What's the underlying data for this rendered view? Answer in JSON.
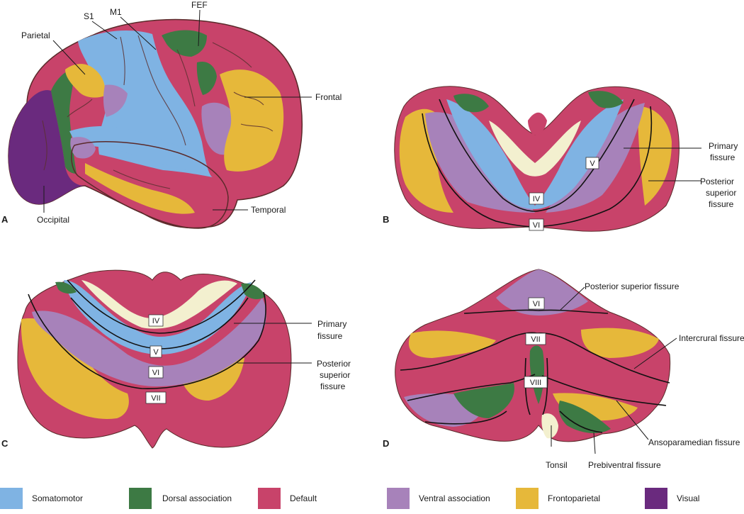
{
  "panels": {
    "a": {
      "letter": "A",
      "labels": {
        "s1": "S1",
        "m1": "M1",
        "fef": "FEF",
        "parietal": "Parietal",
        "frontal": "Frontal",
        "occipital": "Occipital",
        "temporal": "Temporal"
      }
    },
    "b": {
      "letter": "B",
      "lobules": {
        "v": "V",
        "iv": "IV",
        "vi": "VI"
      },
      "labels": {
        "primary_1": "Primary",
        "primary_2": "fissure",
        "pos_1": "Posterior",
        "pos_2": "superior",
        "pos_3": "fissure"
      }
    },
    "c": {
      "letter": "C",
      "lobules": {
        "iv": "IV",
        "v": "V",
        "vi": "VI",
        "vii": "VII"
      },
      "labels": {
        "primary_1": "Primary",
        "primary_2": "fissure",
        "pos_1": "Posterior",
        "pos_2": "superior",
        "pos_3": "fissure"
      }
    },
    "d": {
      "letter": "D",
      "lobules": {
        "vi": "VI",
        "vii": "VII",
        "viii": "VIII"
      },
      "labels": {
        "psf": "Posterior superior fissure",
        "intercrural": "Intercrural fissure",
        "ansoparamedian": "Ansoparamedian fissure",
        "tonsil": "Tonsil",
        "prebiventral": "Prebiventral fissure"
      }
    }
  },
  "colors": {
    "somatomotor": "#7fb3e3",
    "dorsal": "#3d7a44",
    "default": "#c8436a",
    "ventral": "#a782ba",
    "frontoparietal": "#e6b83a",
    "visual": "#6a2a7e"
  },
  "legend": [
    {
      "label": "Somatomotor",
      "color": "#7fb3e3"
    },
    {
      "label": "Dorsal association",
      "color": "#3d7a44"
    },
    {
      "label": "Default",
      "color": "#c8436a"
    },
    {
      "label": "Ventral association",
      "color": "#a782ba"
    },
    {
      "label": "Frontoparietal",
      "color": "#e6b83a"
    },
    {
      "label": "Visual",
      "color": "#6a2a7e"
    }
  ]
}
